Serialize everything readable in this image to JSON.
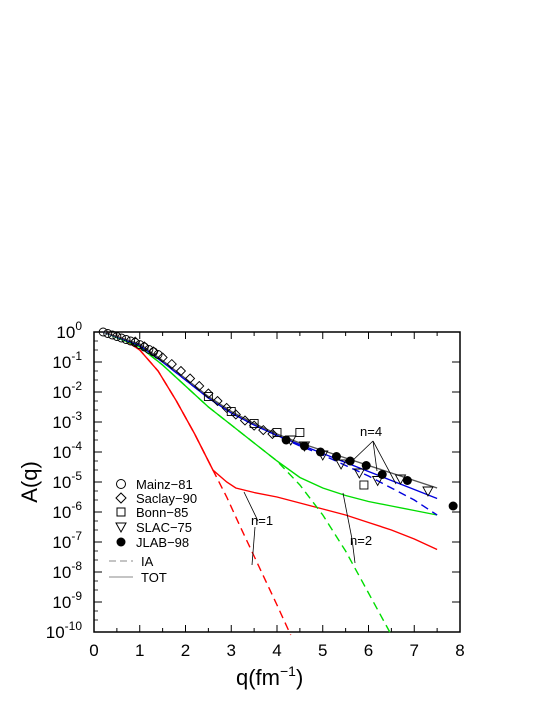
{
  "chart_data": {
    "type": "line",
    "title": "",
    "xlabel": {
      "base": "q(fm",
      "sup": "−1",
      "tail": ")"
    },
    "ylabel": "A(q)",
    "xlim": [
      0,
      8
    ],
    "ylim_log10": [
      -10,
      0
    ],
    "log_scale_y": true,
    "grid": false,
    "x_ticks": [
      "0",
      "1",
      "2",
      "3",
      "4",
      "5",
      "6",
      "7",
      "8"
    ],
    "y_ticks": [
      {
        "base": "10",
        "exp": "0"
      },
      {
        "base": "10",
        "exp": "-1"
      },
      {
        "base": "10",
        "exp": "-2"
      },
      {
        "base": "10",
        "exp": "-3"
      },
      {
        "base": "10",
        "exp": "-4"
      },
      {
        "base": "10",
        "exp": "-5"
      },
      {
        "base": "10",
        "exp": "-6"
      },
      {
        "base": "10",
        "exp": "-7"
      },
      {
        "base": "10",
        "exp": "-8"
      },
      {
        "base": "10",
        "exp": "-9"
      },
      {
        "base": "10",
        "exp": "-10"
      }
    ],
    "legend_position": "bottom-left",
    "legend": [
      {
        "label": "Mainz−81",
        "marker": "circle-open"
      },
      {
        "label": "Saclay−90",
        "marker": "diamond-open"
      },
      {
        "label": "Bonn−85",
        "marker": "square-open"
      },
      {
        "label": "SLAC−75",
        "marker": "triangle-down-open"
      },
      {
        "label": "JLAB−98",
        "marker": "circle-filled"
      },
      {
        "label": "IA",
        "marker": "line-dashed"
      },
      {
        "label": "TOT",
        "marker": "line-solid"
      }
    ],
    "annotations": [
      "n=1",
      "n=2",
      "n=4"
    ],
    "series": [
      {
        "color": "#ff0000",
        "dash": true,
        "x": [
          0.2,
          0.6,
          1.0,
          1.4,
          1.8,
          2.2,
          2.6,
          2.9,
          3.2,
          3.6,
          4.0,
          4.3
        ],
        "y": [
          0.0,
          -0.2,
          -0.6,
          -1.3,
          -2.3,
          -3.4,
          -4.6,
          -5.5,
          -6.5,
          -7.8,
          -9.1,
          -10.1
        ]
      },
      {
        "color": "#ff0000",
        "dash": false,
        "x": [
          0.2,
          0.6,
          1.0,
          1.4,
          1.8,
          2.2,
          2.6,
          2.9,
          3.1,
          3.5,
          4.0,
          4.5,
          5.0,
          5.5,
          6.0,
          6.5,
          7.0,
          7.5
        ],
        "y": [
          0.0,
          -0.2,
          -0.6,
          -1.3,
          -2.3,
          -3.4,
          -4.6,
          -5.0,
          -5.2,
          -5.35,
          -5.5,
          -5.7,
          -5.9,
          -6.1,
          -6.35,
          -6.6,
          -6.9,
          -7.25
        ]
      },
      {
        "color": "#00dd00",
        "dash": true,
        "x": [
          0.2,
          1.0,
          1.5,
          2.0,
          2.5,
          3.0,
          3.5,
          4.0,
          4.5,
          5.0,
          5.5,
          6.0,
          6.5
        ],
        "y": [
          0.0,
          -0.5,
          -1.1,
          -1.8,
          -2.5,
          -3.1,
          -3.7,
          -4.3,
          -5.1,
          -6.1,
          -7.3,
          -8.7,
          -10.1
        ]
      },
      {
        "color": "#00dd00",
        "dash": false,
        "x": [
          0.2,
          1.0,
          1.5,
          2.0,
          2.5,
          3.0,
          3.5,
          4.0,
          4.5,
          5.0,
          5.5,
          6.0,
          6.5,
          7.0,
          7.5
        ],
        "y": [
          0.0,
          -0.5,
          -1.1,
          -1.8,
          -2.5,
          -3.1,
          -3.7,
          -4.3,
          -4.85,
          -5.2,
          -5.45,
          -5.65,
          -5.8,
          -5.95,
          -6.1
        ]
      },
      {
        "color": "#0000dd",
        "dash": true,
        "x": [
          0.2,
          1.0,
          1.5,
          2.0,
          2.5,
          3.0,
          3.5,
          4.0,
          4.5,
          5.0,
          5.5,
          6.0,
          6.5,
          7.0,
          7.5
        ],
        "y": [
          0.0,
          -0.45,
          -1.0,
          -1.6,
          -2.2,
          -2.7,
          -3.1,
          -3.45,
          -3.8,
          -4.1,
          -4.45,
          -4.8,
          -5.2,
          -5.6,
          -6.1
        ]
      },
      {
        "color": "#0000dd",
        "dash": false,
        "x": [
          0.2,
          1.0,
          1.5,
          2.0,
          2.5,
          3.0,
          3.5,
          4.0,
          4.5,
          5.0,
          5.5,
          6.0,
          6.5,
          7.0,
          7.5
        ],
        "y": [
          0.0,
          -0.45,
          -1.0,
          -1.6,
          -2.2,
          -2.7,
          -3.1,
          -3.45,
          -3.75,
          -4.05,
          -4.35,
          -4.65,
          -4.95,
          -5.25,
          -5.55
        ]
      },
      {
        "color": "#555555",
        "dash": false,
        "x": [
          0.2,
          1.0,
          1.5,
          2.0,
          2.5,
          3.0,
          3.5,
          4.0,
          4.5,
          5.0,
          5.5,
          6.0,
          6.5,
          7.0,
          7.5
        ],
        "y": [
          0.0,
          -0.4,
          -0.95,
          -1.55,
          -2.15,
          -2.65,
          -3.05,
          -3.4,
          -3.7,
          -3.95,
          -4.2,
          -4.45,
          -4.7,
          -4.95,
          -5.2
        ]
      }
    ],
    "data_points": {
      "Mainz−81": {
        "x": [
          0.2,
          0.3,
          0.4,
          0.5,
          0.6,
          0.7,
          0.8,
          0.9,
          1.0,
          1.1,
          1.2,
          1.3,
          1.4
        ],
        "y": [
          0.0,
          -0.05,
          -0.1,
          -0.15,
          -0.2,
          -0.25,
          -0.3,
          -0.35,
          -0.42,
          -0.5,
          -0.58,
          -0.66,
          -0.75
        ]
      },
      "Saclay−90": {
        "x": [
          0.9,
          1.1,
          1.3,
          1.5,
          1.7,
          1.9,
          2.1,
          2.3,
          2.5,
          2.7,
          2.9,
          3.1,
          3.3,
          3.5,
          3.7,
          3.9
        ],
        "y": [
          -0.32,
          -0.48,
          -0.65,
          -0.85,
          -1.07,
          -1.3,
          -1.55,
          -1.8,
          -2.05,
          -2.3,
          -2.53,
          -2.75,
          -2.95,
          -3.12,
          -3.27,
          -3.4
        ]
      },
      "Bonn−85": {
        "x": [
          2.5,
          3.0,
          3.5,
          4.0,
          4.5,
          5.9
        ],
        "y": [
          -2.15,
          -2.65,
          -3.05,
          -3.35,
          -3.35,
          -5.1
        ]
      },
      "SLAC−75": {
        "x": [
          4.3,
          4.6,
          5.0,
          5.4,
          5.8,
          6.2,
          6.7,
          7.3
        ],
        "y": [
          -3.6,
          -3.8,
          -4.1,
          -4.4,
          -4.7,
          -4.95,
          -4.9,
          -5.3
        ]
      },
      "JLAB−98": {
        "x": [
          4.2,
          4.6,
          4.95,
          5.3,
          5.6,
          5.95,
          6.3,
          6.85,
          7.85
        ],
        "y": [
          -3.6,
          -3.8,
          -4.0,
          -4.15,
          -4.3,
          -4.45,
          -4.75,
          -4.95,
          -5.8
        ]
      }
    }
  }
}
